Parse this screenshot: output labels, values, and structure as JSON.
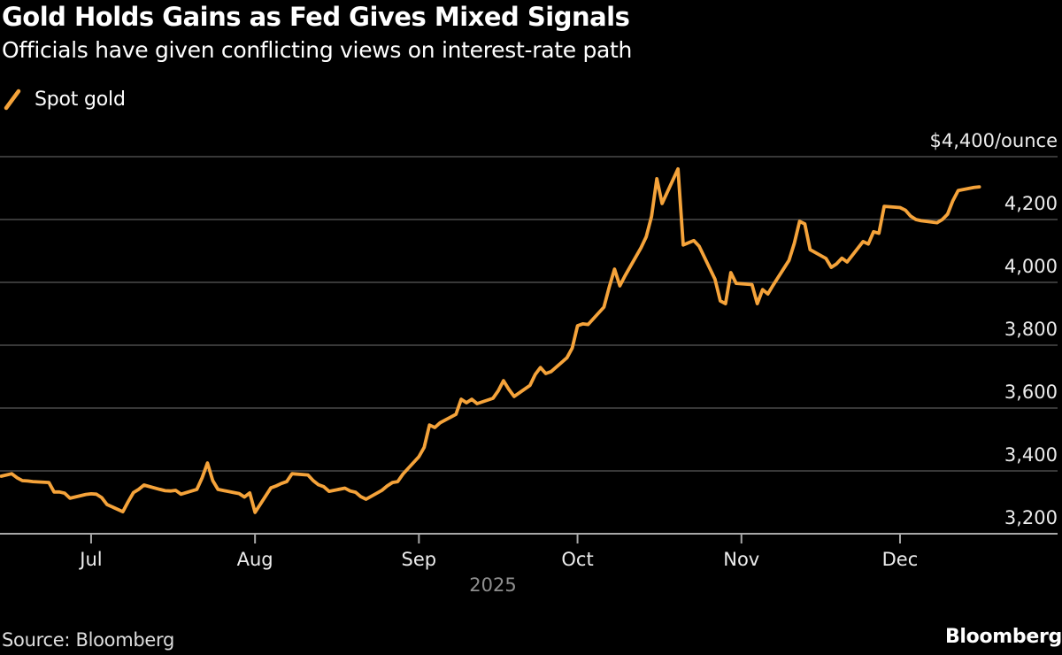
{
  "header": {
    "title": "Gold Holds Gains as Fed Gives Mixed Signals",
    "subtitle": "Officials have given conflicting views on interest-rate path"
  },
  "legend": {
    "series_label": "Spot gold",
    "marker_icon": "diagonal-line-icon"
  },
  "footer": {
    "source": "Source: Bloomberg",
    "logo": "Bloomberg"
  },
  "colors": {
    "background": "#000000",
    "line": "#F5A33A",
    "gridline": "#4A4A4A",
    "axis_line": "#A8A8A8",
    "text_primary": "#FFFFFF",
    "text_axis": "#ECECEC",
    "text_muted": "#8F8F8F"
  },
  "chart_data": {
    "type": "line",
    "title": "Gold Holds Gains as Fed Gives Mixed Signals",
    "subtitle": "Officials have given conflicting views on interest-rate path",
    "ylabel": "$/ounce",
    "xlabel": "2025",
    "year_label": "2025",
    "ylim": [
      3200,
      4400
    ],
    "x_range": [
      "2025-06-14",
      "2025-12-19"
    ],
    "grid": true,
    "legend_position": "top-left",
    "y_ticks": [
      {
        "value": 3200,
        "label": "3,200"
      },
      {
        "value": 3400,
        "label": "3,400"
      },
      {
        "value": 3600,
        "label": "3,600"
      },
      {
        "value": 3800,
        "label": "3,800"
      },
      {
        "value": 4000,
        "label": "4,000"
      },
      {
        "value": 4200,
        "label": "4,200"
      },
      {
        "value": 4400,
        "label": "$4,400/ounce"
      }
    ],
    "x_ticks": [
      {
        "date": "2025-07-01",
        "label": "Jul"
      },
      {
        "date": "2025-08-01",
        "label": "Aug"
      },
      {
        "date": "2025-09-01",
        "label": "Sep"
      },
      {
        "date": "2025-10-01",
        "label": "Oct"
      },
      {
        "date": "2025-11-01",
        "label": "Nov"
      },
      {
        "date": "2025-12-01",
        "label": "Dec"
      }
    ],
    "series": [
      {
        "name": "Spot gold",
        "color": "#F5A33A",
        "points": [
          [
            "2025-06-14",
            3383
          ],
          [
            "2025-06-16",
            3391
          ],
          [
            "2025-06-17",
            3378
          ],
          [
            "2025-06-18",
            3369
          ],
          [
            "2025-06-19",
            3368
          ],
          [
            "2025-06-20",
            3366
          ],
          [
            "2025-06-23",
            3363
          ],
          [
            "2025-06-24",
            3333
          ],
          [
            "2025-06-25",
            3333
          ],
          [
            "2025-06-26",
            3329
          ],
          [
            "2025-06-27",
            3313
          ],
          [
            "2025-06-30",
            3325
          ],
          [
            "2025-07-01",
            3327
          ],
          [
            "2025-07-02",
            3326
          ],
          [
            "2025-07-03",
            3315
          ],
          [
            "2025-07-04",
            3293
          ],
          [
            "2025-07-07",
            3270
          ],
          [
            "2025-07-08",
            3302
          ],
          [
            "2025-07-09",
            3331
          ],
          [
            "2025-07-10",
            3341
          ],
          [
            "2025-07-11",
            3355
          ],
          [
            "2025-07-14",
            3341
          ],
          [
            "2025-07-15",
            3337
          ],
          [
            "2025-07-16",
            3336
          ],
          [
            "2025-07-17",
            3338
          ],
          [
            "2025-07-18",
            3326
          ],
          [
            "2025-07-21",
            3341
          ],
          [
            "2025-07-22",
            3378
          ],
          [
            "2025-07-23",
            3425
          ],
          [
            "2025-07-24",
            3369
          ],
          [
            "2025-07-25",
            3341
          ],
          [
            "2025-07-28",
            3331
          ],
          [
            "2025-07-29",
            3328
          ],
          [
            "2025-07-30",
            3317
          ],
          [
            "2025-07-31",
            3330
          ],
          [
            "2025-08-01",
            3268
          ],
          [
            "2025-08-04",
            3346
          ],
          [
            "2025-08-05",
            3352
          ],
          [
            "2025-08-06",
            3360
          ],
          [
            "2025-08-07",
            3366
          ],
          [
            "2025-08-08",
            3391
          ],
          [
            "2025-08-11",
            3387
          ],
          [
            "2025-08-12",
            3369
          ],
          [
            "2025-08-13",
            3356
          ],
          [
            "2025-08-14",
            3350
          ],
          [
            "2025-08-15",
            3335
          ],
          [
            "2025-08-18",
            3345
          ],
          [
            "2025-08-19",
            3336
          ],
          [
            "2025-08-20",
            3332
          ],
          [
            "2025-08-21",
            3318
          ],
          [
            "2025-08-22",
            3310
          ],
          [
            "2025-08-25",
            3338
          ],
          [
            "2025-08-26",
            3352
          ],
          [
            "2025-08-27",
            3363
          ],
          [
            "2025-08-28",
            3366
          ],
          [
            "2025-08-29",
            3390
          ],
          [
            "2025-09-01",
            3445
          ],
          [
            "2025-09-02",
            3475
          ],
          [
            "2025-09-03",
            3546
          ],
          [
            "2025-09-04",
            3538
          ],
          [
            "2025-09-05",
            3553
          ],
          [
            "2025-09-08",
            3580
          ],
          [
            "2025-09-09",
            3628
          ],
          [
            "2025-09-10",
            3617
          ],
          [
            "2025-09-11",
            3628
          ],
          [
            "2025-09-12",
            3614
          ],
          [
            "2025-09-15",
            3631
          ],
          [
            "2025-09-16",
            3655
          ],
          [
            "2025-09-17",
            3687
          ],
          [
            "2025-09-18",
            3660
          ],
          [
            "2025-09-19",
            3637
          ],
          [
            "2025-09-22",
            3672
          ],
          [
            "2025-09-23",
            3707
          ],
          [
            "2025-09-24",
            3729
          ],
          [
            "2025-09-25",
            3710
          ],
          [
            "2025-09-26",
            3716
          ],
          [
            "2025-09-29",
            3760
          ],
          [
            "2025-09-30",
            3791
          ],
          [
            "2025-10-01",
            3862
          ],
          [
            "2025-10-02",
            3868
          ],
          [
            "2025-10-03",
            3866
          ],
          [
            "2025-10-06",
            3921
          ],
          [
            "2025-10-07",
            3985
          ],
          [
            "2025-10-08",
            4042
          ],
          [
            "2025-10-09",
            3989
          ],
          [
            "2025-10-10",
            4021
          ],
          [
            "2025-10-13",
            4110
          ],
          [
            "2025-10-14",
            4145
          ],
          [
            "2025-10-15",
            4210
          ],
          [
            "2025-10-16",
            4330
          ],
          [
            "2025-10-17",
            4251
          ],
          [
            "2025-10-20",
            4361
          ],
          [
            "2025-10-21",
            4119
          ],
          [
            "2025-10-22",
            4126
          ],
          [
            "2025-10-23",
            4133
          ],
          [
            "2025-10-24",
            4115
          ],
          [
            "2025-10-27",
            4010
          ],
          [
            "2025-10-28",
            3941
          ],
          [
            "2025-10-29",
            3932
          ],
          [
            "2025-10-30",
            4031
          ],
          [
            "2025-10-31",
            3997
          ],
          [
            "2025-11-03",
            3993
          ],
          [
            "2025-11-04",
            3932
          ],
          [
            "2025-11-05",
            3977
          ],
          [
            "2025-11-06",
            3963
          ],
          [
            "2025-11-07",
            3991
          ],
          [
            "2025-11-10",
            4070
          ],
          [
            "2025-11-11",
            4124
          ],
          [
            "2025-11-12",
            4194
          ],
          [
            "2025-11-13",
            4186
          ],
          [
            "2025-11-14",
            4104
          ],
          [
            "2025-11-17",
            4076
          ],
          [
            "2025-11-18",
            4048
          ],
          [
            "2025-11-19",
            4059
          ],
          [
            "2025-11-20",
            4077
          ],
          [
            "2025-11-21",
            4065
          ],
          [
            "2025-11-24",
            4130
          ],
          [
            "2025-11-25",
            4122
          ],
          [
            "2025-11-26",
            4161
          ],
          [
            "2025-11-27",
            4156
          ],
          [
            "2025-11-28",
            4242
          ],
          [
            "2025-12-01",
            4238
          ],
          [
            "2025-12-02",
            4230
          ],
          [
            "2025-12-03",
            4211
          ],
          [
            "2025-12-04",
            4200
          ],
          [
            "2025-12-05",
            4196
          ],
          [
            "2025-12-08",
            4190
          ],
          [
            "2025-12-09",
            4200
          ],
          [
            "2025-12-10",
            4217
          ],
          [
            "2025-12-11",
            4260
          ],
          [
            "2025-12-12",
            4292
          ],
          [
            "2025-12-15",
            4302
          ],
          [
            "2025-12-16",
            4304
          ]
        ]
      }
    ]
  }
}
